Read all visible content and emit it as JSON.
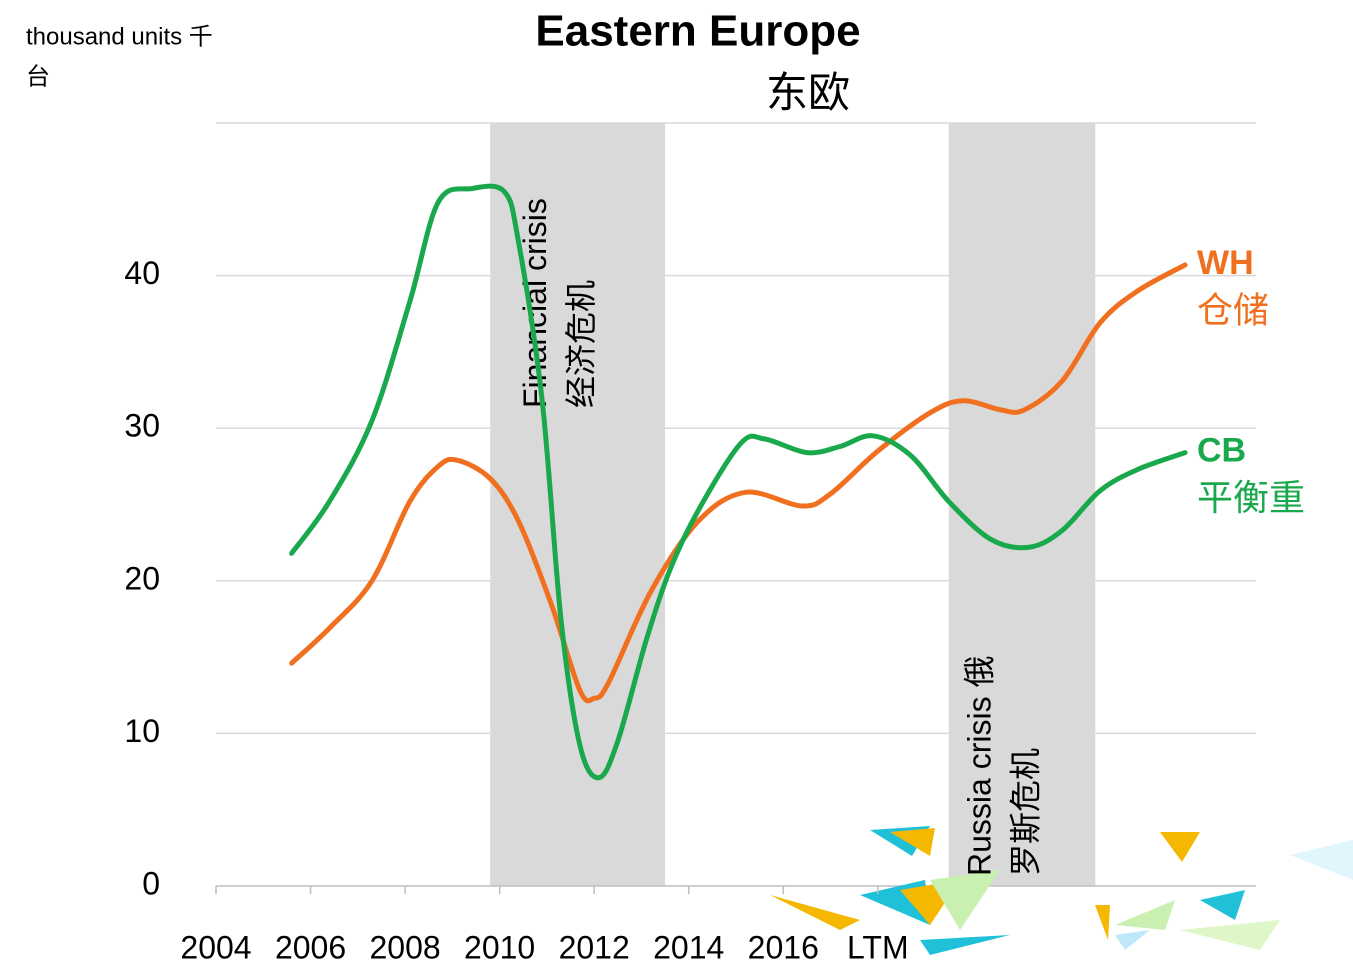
{
  "chart_data": {
    "type": "line",
    "title": "Eastern Europe",
    "subtitle": "东欧",
    "y_label": [
      "thousand units 千",
      "台"
    ],
    "xlim": [
      2004,
      2026
    ],
    "xticks": [
      2004,
      2006,
      2008,
      2010,
      2012,
      2014,
      2016,
      {
        "value": 2018,
        "label": "LTM"
      }
    ],
    "ylim": [
      0,
      50
    ],
    "yticks": [
      0,
      10,
      20,
      30,
      40
    ],
    "grid": true,
    "series": [
      {
        "name": "WH",
        "name_zh": "仓储",
        "color": "#f07020",
        "x": [
          2005.6,
          2006.4,
          2007.3,
          2008.1,
          2008.7,
          2009.1,
          2009.8,
          2010.4,
          2011.1,
          2011.7,
          2012.0,
          2012.3,
          2013.2,
          2014.2,
          2015.2,
          2016.4,
          2017.0,
          2018.0,
          2019.1,
          2019.8,
          2020.6,
          2021.1,
          2021.9,
          2022.7,
          2023.5,
          2024.5
        ],
        "values": [
          14.6,
          16.9,
          20.0,
          25.2,
          27.5,
          27.9,
          26.7,
          23.9,
          18.4,
          12.8,
          12.3,
          13.3,
          19.3,
          23.9,
          25.8,
          24.9,
          25.7,
          28.5,
          31.0,
          31.8,
          31.2,
          31.2,
          33.1,
          36.9,
          39.0,
          40.7
        ]
      },
      {
        "name": "CB",
        "name_zh": "平衡重",
        "color": "#1aa84c",
        "x": [
          2005.6,
          2006.4,
          2007.3,
          2008.1,
          2008.7,
          2009.4,
          2010.1,
          2010.4,
          2010.9,
          2011.3,
          2011.7,
          2012.1,
          2012.5,
          2013.1,
          2013.6,
          2014.2,
          2015.1,
          2015.6,
          2016.5,
          2017.2,
          2017.9,
          2018.7,
          2019.5,
          2020.4,
          2021.2,
          2021.9,
          2022.7,
          2023.5,
          2024.5
        ],
        "values": [
          21.8,
          25.2,
          30.5,
          38.3,
          44.8,
          45.7,
          45.5,
          42.2,
          31.8,
          17.4,
          9.2,
          7.1,
          9.5,
          16.1,
          20.7,
          24.6,
          29.0,
          29.3,
          28.4,
          28.8,
          29.5,
          28.2,
          25.2,
          22.7,
          22.2,
          23.3,
          25.9,
          27.3,
          28.4
        ]
      }
    ],
    "annotations": [
      {
        "text": "Financial crisis",
        "text_zh": "经济危机",
        "x_start": 2009.8,
        "x_end": 2013.5
      },
      {
        "text": "Russia crisis 俄",
        "text_zh": "罗斯危机",
        "x_start": 2019.5,
        "x_end": 2022.6
      }
    ]
  }
}
